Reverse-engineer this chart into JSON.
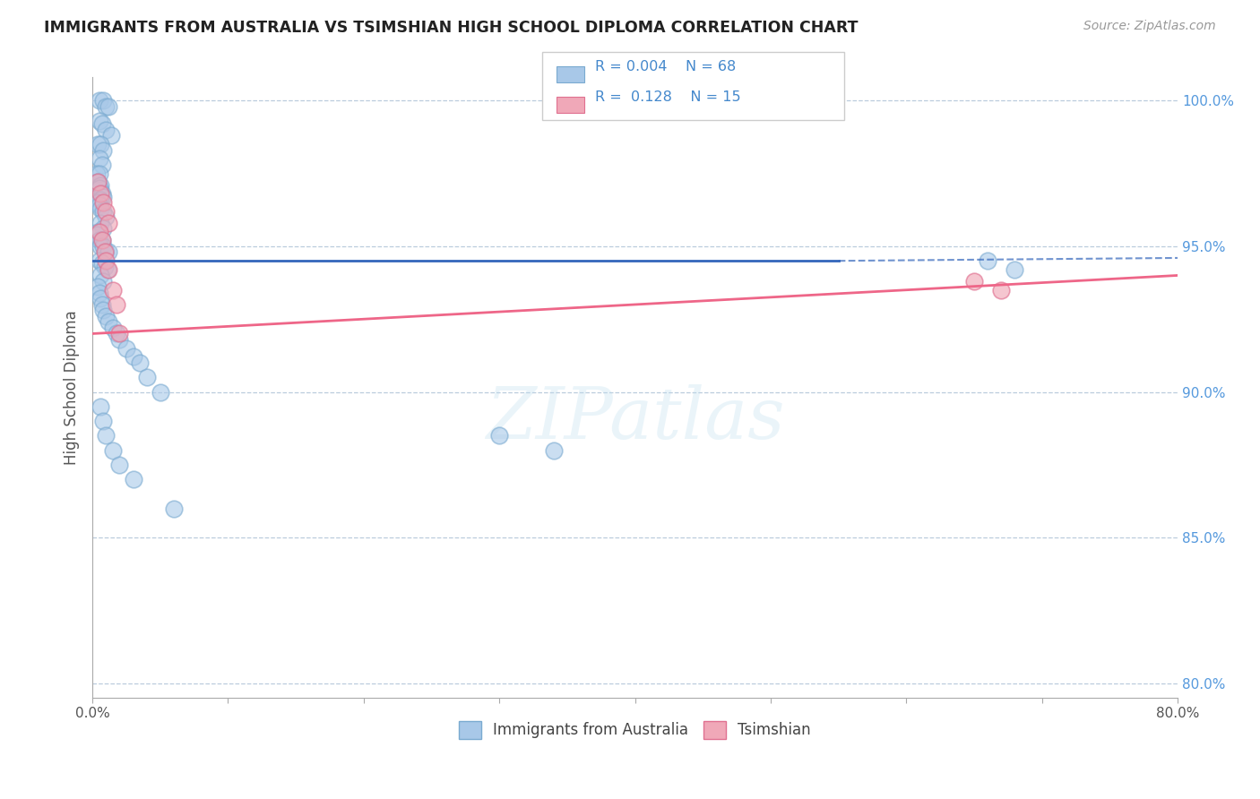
{
  "title": "IMMIGRANTS FROM AUSTRALIA VS TSIMSHIAN HIGH SCHOOL DIPLOMA CORRELATION CHART",
  "source": "Source: ZipAtlas.com",
  "ylabel": "High School Diploma",
  "watermark": "ZIPatlas",
  "xmin": 0.0,
  "xmax": 0.8,
  "ymin": 0.795,
  "ymax": 1.008,
  "yticks": [
    0.8,
    0.85,
    0.9,
    0.95,
    1.0
  ],
  "ytick_labels": [
    "80.0%",
    "85.0%",
    "90.0%",
    "95.0%",
    "100.0%"
  ],
  "xticks": [
    0.0,
    0.1,
    0.2,
    0.3,
    0.4,
    0.5,
    0.6,
    0.7,
    0.8
  ],
  "xtick_labels_show": [
    "0.0%",
    "",
    "",
    "",
    "",
    "",
    "",
    "",
    "80.0%"
  ],
  "blue_color": "#A8C8E8",
  "pink_color": "#F0A8B8",
  "blue_edge_color": "#7AAAD0",
  "pink_edge_color": "#E07090",
  "blue_line_color": "#3366BB",
  "pink_line_color": "#EE6688",
  "grid_color": "#BBCCDD",
  "title_color": "#222222",
  "legend_r1": "R = 0.004",
  "legend_n1": "N = 68",
  "legend_r2": "R =  0.128",
  "legend_n2": "N = 15",
  "blue_scatter_x": [
    0.005,
    0.008,
    0.01,
    0.012,
    0.005,
    0.007,
    0.01,
    0.014,
    0.004,
    0.006,
    0.008,
    0.005,
    0.007,
    0.003,
    0.005,
    0.004,
    0.006,
    0.005,
    0.007,
    0.008,
    0.006,
    0.004,
    0.005,
    0.006,
    0.008,
    0.01,
    0.006,
    0.008,
    0.004,
    0.003,
    0.005,
    0.007,
    0.006,
    0.008,
    0.01,
    0.012,
    0.005,
    0.007,
    0.009,
    0.011,
    0.006,
    0.008,
    0.004,
    0.005,
    0.006,
    0.007,
    0.008,
    0.01,
    0.012,
    0.015,
    0.018,
    0.02,
    0.025,
    0.03,
    0.035,
    0.04,
    0.05,
    0.006,
    0.008,
    0.01,
    0.015,
    0.02,
    0.03,
    0.06,
    0.3,
    0.34,
    0.66,
    0.68
  ],
  "blue_scatter_y": [
    1.0,
    1.0,
    0.998,
    0.998,
    0.993,
    0.992,
    0.99,
    0.988,
    0.985,
    0.985,
    0.983,
    0.98,
    0.978,
    0.975,
    0.975,
    0.972,
    0.971,
    0.97,
    0.968,
    0.967,
    0.966,
    0.965,
    0.964,
    0.963,
    0.962,
    0.96,
    0.958,
    0.956,
    0.955,
    0.954,
    0.952,
    0.952,
    0.95,
    0.95,
    0.948,
    0.948,
    0.945,
    0.944,
    0.943,
    0.942,
    0.94,
    0.938,
    0.936,
    0.934,
    0.932,
    0.93,
    0.928,
    0.926,
    0.924,
    0.922,
    0.92,
    0.918,
    0.915,
    0.912,
    0.91,
    0.905,
    0.9,
    0.895,
    0.89,
    0.885,
    0.88,
    0.875,
    0.87,
    0.86,
    0.885,
    0.88,
    0.945,
    0.942
  ],
  "pink_scatter_x": [
    0.004,
    0.006,
    0.008,
    0.01,
    0.012,
    0.005,
    0.007,
    0.009,
    0.01,
    0.012,
    0.015,
    0.018,
    0.02,
    0.65,
    0.67
  ],
  "pink_scatter_y": [
    0.972,
    0.968,
    0.965,
    0.962,
    0.958,
    0.955,
    0.952,
    0.948,
    0.945,
    0.942,
    0.935,
    0.93,
    0.92,
    0.938,
    0.935
  ],
  "blue_trendline_x": [
    0.0,
    0.55,
    0.8
  ],
  "blue_trendline_y": [
    0.945,
    0.945,
    0.946
  ],
  "blue_trendline_dash": [
    0.0,
    0.55
  ],
  "blue_trendline_solid": [
    0.0,
    0.55
  ],
  "pink_trendline_x": [
    0.0,
    0.8
  ],
  "pink_trendline_y": [
    0.92,
    0.94
  ]
}
